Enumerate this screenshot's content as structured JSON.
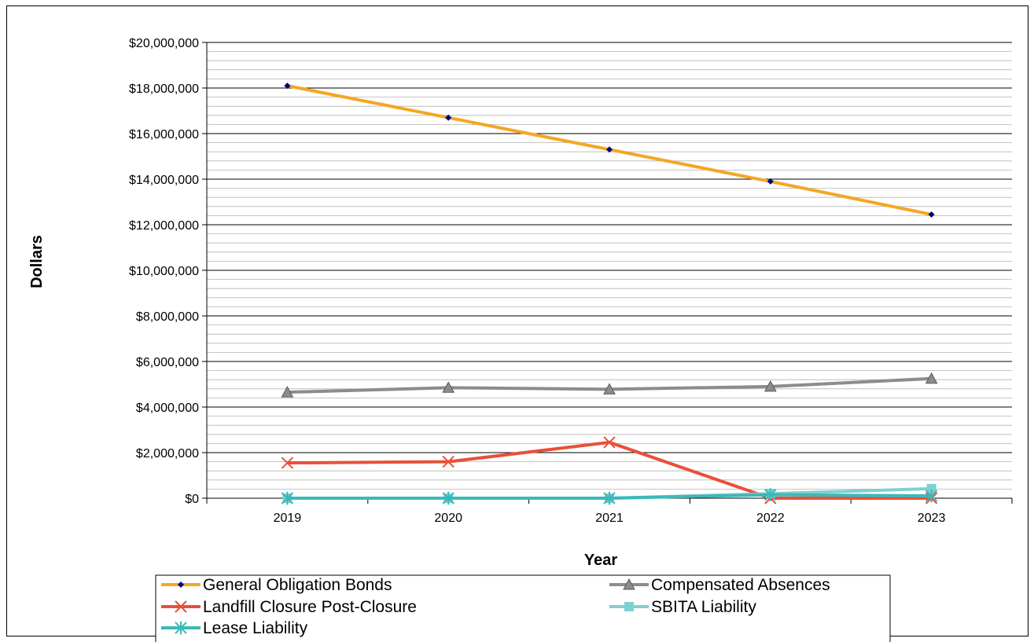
{
  "chart_data": {
    "type": "line",
    "title": "",
    "xlabel": "Year",
    "ylabel": "Dollars",
    "categories": [
      "2019",
      "2020",
      "2021",
      "2022",
      "2023"
    ],
    "ylim": [
      0,
      20000000
    ],
    "y_major_step": 2000000,
    "y_minor_step": 400000,
    "y_tick_labels": [
      "$0",
      "$2,000,000",
      "$4,000,000",
      "$6,000,000",
      "$8,000,000",
      "$10,000,000",
      "$12,000,000",
      "$14,000,000",
      "$16,000,000",
      "$18,000,000",
      "$20,000,000"
    ],
    "grid": true,
    "legend_position": "bottom",
    "series": [
      {
        "name": "General Obligation Bonds",
        "color": "#f5a623",
        "marker": "diamond",
        "marker_color": "#00007a",
        "values": [
          18100000,
          16700000,
          15300000,
          13900000,
          12450000
        ]
      },
      {
        "name": "Compensated Absences",
        "color": "#8c8c8c",
        "marker": "triangle",
        "marker_color": "#8c8c8c",
        "values": [
          4650000,
          4850000,
          4780000,
          4900000,
          5250000
        ]
      },
      {
        "name": "Landfill Closure Post-Closure",
        "color": "#e8503a",
        "marker": "x",
        "marker_color": "#e8503a",
        "values": [
          1550000,
          1600000,
          2450000,
          0,
          0
        ]
      },
      {
        "name": "SBITA Liability",
        "color": "#7fd0d0",
        "marker": "square",
        "marker_color": "#7fd0d0",
        "values": [
          0,
          0,
          0,
          200000,
          420000
        ]
      },
      {
        "name": "Lease Liability",
        "color": "#3cb8b8",
        "marker": "asterisk",
        "marker_color": "#3cb8b8",
        "values": [
          0,
          0,
          0,
          150000,
          100000
        ]
      }
    ]
  }
}
